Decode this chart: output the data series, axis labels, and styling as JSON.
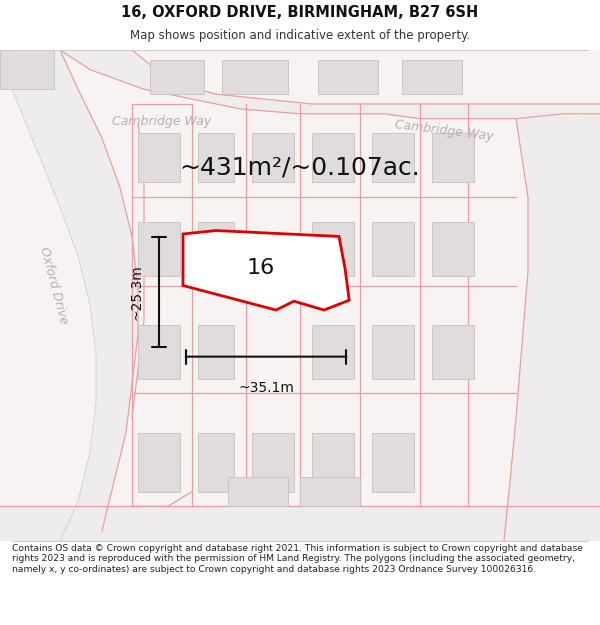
{
  "title_line1": "16, OXFORD DRIVE, BIRMINGHAM, B27 6SH",
  "title_line2": "Map shows position and indicative extent of the property.",
  "footer_text": "Contains OS data © Crown copyright and database right 2021. This information is subject to Crown copyright and database rights 2023 and is reproduced with the permission of HM Land Registry. The polygons (including the associated geometry, namely x, y co-ordinates) are subject to Crown copyright and database rights 2023 Ordnance Survey 100026316.",
  "area_label": "~431m²/~0.107ac.",
  "house_number": "16",
  "width_label": "~35.1m",
  "height_label": "~25.3m",
  "bg_color": "#f7f3f3",
  "road_fill": "#f0eded",
  "building_fill": "#e8e4e4",
  "building_edge": "#d4c8c8",
  "plot_line_color": "#e8a0a0",
  "property_fill": "#ffffff",
  "property_edge": "#dd0000",
  "road_label_color": "#b8b0b0",
  "dim_color": "#111111",
  "fig_width": 6.0,
  "fig_height": 6.25,
  "title_fontsize": 10.5,
  "subtitle_fontsize": 8.5,
  "area_fontsize": 18,
  "number_fontsize": 16,
  "dim_fontsize": 10,
  "street_fontsize": 9
}
